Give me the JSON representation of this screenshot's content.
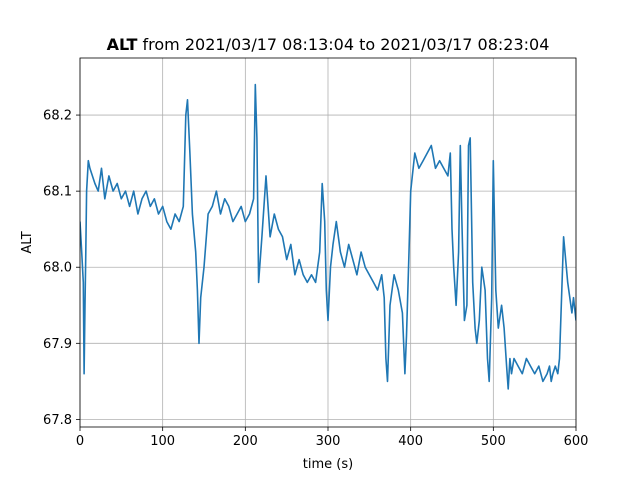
{
  "chart_data": {
    "type": "line",
    "title_bold": "ALT",
    "title_rest": " from 2021/03/17 08:13:04 to 2021/03/17 08:23:04",
    "xlabel": "time (s)",
    "ylabel": "ALT",
    "xlim": [
      0,
      600
    ],
    "ylim": [
      67.79,
      68.275
    ],
    "xticks": [
      0,
      100,
      200,
      300,
      400,
      500,
      600
    ],
    "xtick_labels": [
      "0",
      "100",
      "200",
      "300",
      "400",
      "500",
      "600"
    ],
    "yticks": [
      67.8,
      67.9,
      68.0,
      68.1,
      68.2
    ],
    "ytick_labels": [
      "67.8",
      "67.9",
      "68.0",
      "68.1",
      "68.2"
    ],
    "grid": true,
    "line_color": "#1f77b4",
    "series": [
      {
        "x": [
          0,
          2,
          4,
          5,
          6,
          7,
          8,
          10,
          12,
          15,
          18,
          22,
          26,
          30,
          35,
          40,
          45,
          50,
          55,
          60,
          65,
          70,
          75,
          80,
          85,
          90,
          95,
          100,
          105,
          110,
          115,
          120,
          125,
          128,
          130,
          133,
          136,
          140,
          142,
          144,
          146,
          150,
          155,
          160,
          165,
          170,
          175,
          180,
          185,
          190,
          195,
          200,
          205,
          210,
          212,
          214,
          216,
          220,
          225,
          230,
          235,
          240,
          245,
          250,
          255,
          260,
          265,
          270,
          275,
          280,
          285,
          290,
          293,
          296,
          298,
          300,
          303,
          306,
          310,
          315,
          320,
          325,
          330,
          335,
          340,
          345,
          350,
          355,
          360,
          365,
          368,
          370,
          372,
          375,
          380,
          385,
          390,
          393,
          395,
          398,
          400,
          405,
          410,
          415,
          420,
          425,
          430,
          435,
          440,
          445,
          448,
          450,
          452,
          455,
          458,
          460,
          462,
          465,
          468,
          470,
          472,
          475,
          478,
          480,
          483,
          486,
          490,
          493,
          495,
          498,
          500,
          503,
          506,
          510,
          513,
          516,
          518,
          520,
          522,
          525,
          530,
          535,
          540,
          545,
          550,
          555,
          560,
          565,
          568,
          570,
          572,
          575,
          578,
          580,
          585,
          590,
          595,
          597,
          600
        ],
        "y": [
          68.06,
          68.02,
          67.98,
          67.86,
          67.95,
          68.02,
          68.1,
          68.14,
          68.13,
          68.12,
          68.11,
          68.1,
          68.13,
          68.09,
          68.12,
          68.1,
          68.11,
          68.09,
          68.1,
          68.08,
          68.1,
          68.07,
          68.09,
          68.1,
          68.08,
          68.09,
          68.07,
          68.08,
          68.06,
          68.05,
          68.07,
          68.06,
          68.08,
          68.2,
          68.22,
          68.15,
          68.07,
          68.02,
          67.97,
          67.9,
          67.96,
          68.0,
          68.07,
          68.08,
          68.1,
          68.07,
          68.09,
          68.08,
          68.06,
          68.07,
          68.08,
          68.06,
          68.07,
          68.09,
          68.24,
          68.17,
          67.98,
          68.04,
          68.12,
          68.04,
          68.07,
          68.05,
          68.04,
          68.01,
          68.03,
          67.99,
          68.01,
          67.99,
          67.98,
          67.99,
          67.98,
          68.02,
          68.11,
          68.06,
          67.97,
          67.93,
          68.0,
          68.03,
          68.06,
          68.02,
          68.0,
          68.03,
          68.01,
          67.99,
          68.02,
          68.0,
          67.99,
          67.98,
          67.97,
          67.99,
          67.96,
          67.88,
          67.85,
          67.95,
          67.99,
          67.97,
          67.94,
          67.86,
          67.91,
          68.02,
          68.1,
          68.15,
          68.13,
          68.14,
          68.15,
          68.16,
          68.13,
          68.14,
          68.13,
          68.12,
          68.15,
          68.05,
          68.0,
          67.95,
          68.02,
          68.16,
          68.06,
          67.93,
          67.95,
          68.16,
          68.17,
          67.98,
          67.92,
          67.9,
          67.93,
          68.0,
          67.97,
          67.88,
          67.85,
          67.96,
          68.14,
          67.97,
          67.92,
          67.95,
          67.92,
          67.87,
          67.84,
          67.88,
          67.86,
          67.88,
          67.87,
          67.86,
          67.88,
          67.87,
          67.86,
          67.87,
          67.85,
          67.86,
          67.87,
          67.85,
          67.86,
          67.87,
          67.86,
          67.88,
          68.04,
          67.98,
          67.94,
          67.96,
          67.93
        ]
      }
    ]
  }
}
